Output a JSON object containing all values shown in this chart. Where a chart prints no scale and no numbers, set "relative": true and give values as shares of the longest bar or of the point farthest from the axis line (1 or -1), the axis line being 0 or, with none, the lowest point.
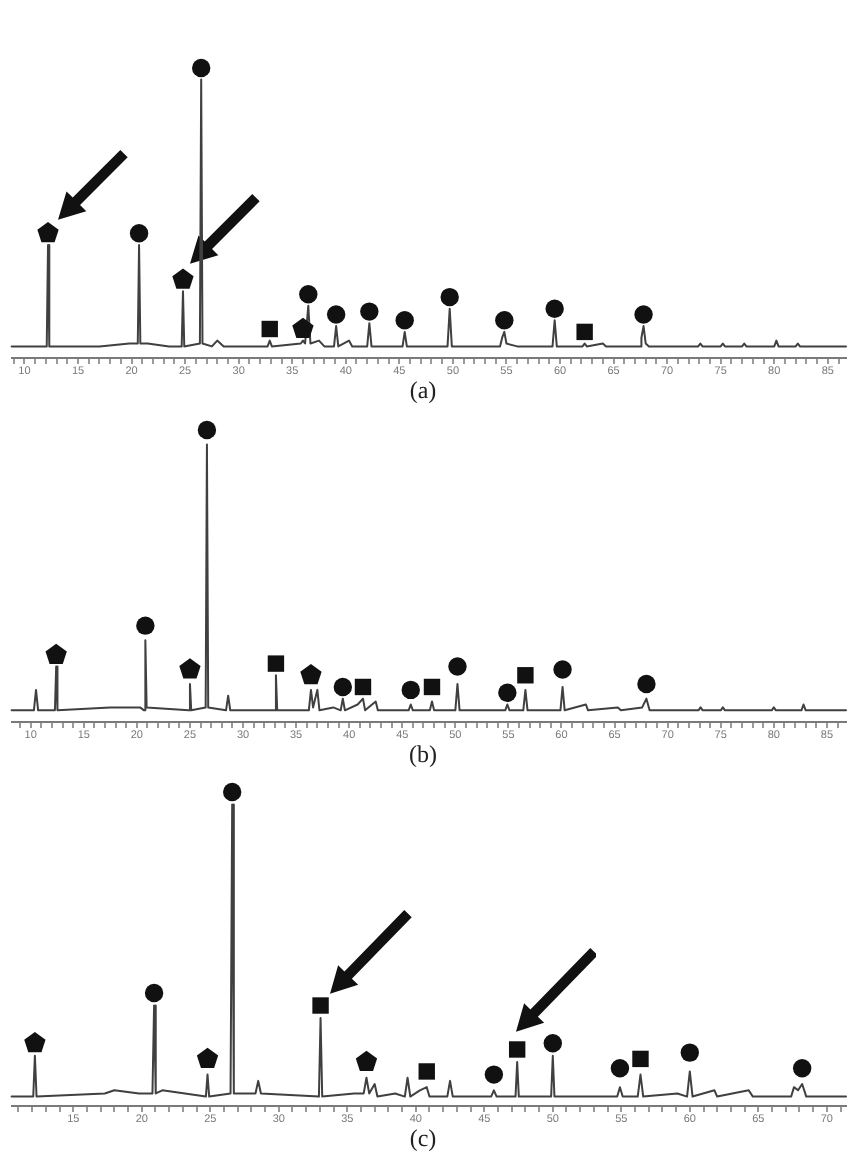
{
  "chart_data": [
    {
      "type": "line",
      "title": "(a)",
      "relative": true,
      "xlim": [
        8.8,
        86.7
      ],
      "xticks": [
        {
          "value": 9,
          "label": null
        },
        10,
        {
          "value": 11,
          "label": null
        },
        {
          "value": 12,
          "label": null
        },
        {
          "value": 13,
          "label": null
        },
        {
          "value": 14,
          "label": null
        },
        15,
        {
          "value": 16,
          "label": null
        },
        {
          "value": 17,
          "label": null
        },
        {
          "value": 18,
          "label": null
        },
        {
          "value": 19,
          "label": null
        },
        20,
        {
          "value": 21,
          "label": null
        },
        {
          "value": 22,
          "label": null
        },
        {
          "value": 23,
          "label": null
        },
        {
          "value": 24,
          "label": null
        },
        25,
        {
          "value": 26,
          "label": null
        },
        {
          "value": 27,
          "label": null
        },
        {
          "value": 28,
          "label": null
        },
        {
          "value": 29,
          "label": null
        },
        30,
        {
          "value": 31,
          "label": null
        },
        {
          "value": 32,
          "label": null
        },
        {
          "value": 33,
          "label": null
        },
        {
          "value": 34,
          "label": null
        },
        35,
        {
          "value": 36,
          "label": null
        },
        {
          "value": 37,
          "label": null
        },
        {
          "value": 38,
          "label": null
        },
        {
          "value": 39,
          "label": null
        },
        40,
        {
          "value": 41,
          "label": null
        },
        {
          "value": 42,
          "label": null
        },
        {
          "value": 43,
          "label": null
        },
        {
          "value": 44,
          "label": null
        },
        45,
        {
          "value": 46,
          "label": null
        },
        {
          "value": 47,
          "label": null
        },
        {
          "value": 48,
          "label": null
        },
        {
          "value": 49,
          "label": null
        },
        50,
        {
          "value": 51,
          "label": null
        },
        {
          "value": 52,
          "label": null
        },
        {
          "value": 53,
          "label": null
        },
        {
          "value": 54,
          "label": null
        },
        55,
        {
          "value": 56,
          "label": null
        },
        {
          "value": 57,
          "label": null
        },
        {
          "value": 58,
          "label": null
        },
        {
          "value": 59,
          "label": null
        },
        60,
        {
          "value": 61,
          "label": null
        },
        {
          "value": 62,
          "label": null
        },
        {
          "value": 63,
          "label": null
        },
        {
          "value": 64,
          "label": null
        },
        65,
        {
          "value": 66,
          "label": null
        },
        {
          "value": 67,
          "label": null
        },
        {
          "value": 68,
          "label": null
        },
        {
          "value": 69,
          "label": null
        },
        70,
        {
          "value": 71,
          "label": null
        },
        {
          "value": 72,
          "label": null
        },
        {
          "value": 73,
          "label": null
        },
        {
          "value": 74,
          "label": null
        },
        75,
        {
          "value": 76,
          "label": null
        },
        {
          "value": 77,
          "label": null
        },
        {
          "value": 78,
          "label": null
        },
        {
          "value": 79,
          "label": null
        },
        80,
        {
          "value": 81,
          "label": null
        },
        {
          "value": 82,
          "label": null
        },
        {
          "value": 83,
          "label": null
        },
        {
          "value": 84,
          "label": null
        },
        85,
        {
          "value": 86,
          "label": null
        }
      ],
      "series": [
        {
          "type": "line",
          "color": "#404040",
          "marker": "none",
          "x": [
            8.8,
            12.08,
            12.2,
            12.32,
            17,
            19.8,
            20.58,
            20.7,
            20.82,
            21.5,
            23.5,
            24.68,
            24.8,
            24.92,
            26.38,
            26.5,
            26.62,
            27.5,
            28,
            28.6,
            32.7,
            32.9,
            33.1,
            35.8,
            36,
            36.2,
            36.5,
            36.7,
            37.5,
            38,
            38.9,
            39.1,
            39.3,
            40.3,
            40.6,
            42,
            42.2,
            42.4,
            45.3,
            45.5,
            45.7,
            49.5,
            49.7,
            49.9,
            54.4,
            54.6,
            54.8,
            55,
            56,
            59.3,
            59.5,
            59.7,
            62.1,
            62.3,
            62.5,
            64,
            64.3,
            67.5,
            67.6,
            67.8,
            68,
            68.3,
            72.9,
            73.1,
            73.3,
            75,
            75.2,
            75.4,
            77,
            77.2,
            77.4,
            80,
            80.2,
            80.4,
            82,
            82.2,
            82.4,
            86.7
          ],
          "values": [
            0.04,
            0.04,
            0.39,
            0.04,
            0.04,
            0.05,
            0.05,
            0.39,
            0.05,
            0.05,
            0.04,
            0.04,
            0.23,
            0.04,
            0.05,
            0.96,
            0.05,
            0.04,
            0.06,
            0.04,
            0.04,
            0.06,
            0.04,
            0.05,
            0.06,
            0.05,
            0.18,
            0.05,
            0.06,
            0.04,
            0.04,
            0.11,
            0.04,
            0.06,
            0.04,
            0.04,
            0.12,
            0.04,
            0.04,
            0.09,
            0.04,
            0.04,
            0.17,
            0.04,
            0.04,
            0.07,
            0.09,
            0.05,
            0.04,
            0.04,
            0.13,
            0.04,
            0.04,
            0.05,
            0.04,
            0.05,
            0.04,
            0.04,
            0.07,
            0.11,
            0.05,
            0.04,
            0.04,
            0.05,
            0.04,
            0.04,
            0.05,
            0.04,
            0.04,
            0.05,
            0.04,
            0.04,
            0.06,
            0.04,
            0.04,
            0.05,
            0.04,
            0.04
          ]
        },
        {
          "type": "scatter",
          "color": "#111111",
          "x": [
            12.2,
            24.8,
            36
          ],
          "values": [
            0.43,
            0.27,
            0.1
          ]
        },
        {
          "type": "scatter",
          "color": "#111111",
          "marker": "circle",
          "x": [
            20.7,
            26.5,
            36.5,
            39.1,
            42.2,
            45.5,
            49.7,
            54.8,
            59.5,
            67.8
          ],
          "values": [
            0.43,
            1,
            0.22,
            0.15,
            0.16,
            0.13,
            0.21,
            0.13,
            0.17,
            0.15
          ]
        },
        {
          "type": "scatter",
          "color": "#111111",
          "marker": "square",
          "x": [
            32.9,
            62.3
          ],
          "values": [
            0.1,
            0.09
          ]
        }
      ]
    },
    {
      "type": "line",
      "title": "(b)",
      "relative": true,
      "xlim": [
        8.2,
        86.8
      ],
      "xticks": [
        {
          "value": 9,
          "label": null
        },
        10,
        {
          "value": 11,
          "label": null
        },
        {
          "value": 12,
          "label": null
        },
        {
          "value": 13,
          "label": null
        },
        {
          "value": 14,
          "label": null
        },
        15,
        {
          "value": 16,
          "label": null
        },
        {
          "value": 17,
          "label": null
        },
        {
          "value": 18,
          "label": null
        },
        {
          "value": 19,
          "label": null
        },
        20,
        {
          "value": 21,
          "label": null
        },
        {
          "value": 22,
          "label": null
        },
        {
          "value": 23,
          "label": null
        },
        {
          "value": 24,
          "label": null
        },
        25,
        {
          "value": 26,
          "label": null
        },
        {
          "value": 27,
          "label": null
        },
        {
          "value": 28,
          "label": null
        },
        {
          "value": 29,
          "label": null
        },
        30,
        {
          "value": 31,
          "label": null
        },
        {
          "value": 32,
          "label": null
        },
        {
          "value": 33,
          "label": null
        },
        {
          "value": 34,
          "label": null
        },
        35,
        {
          "value": 36,
          "label": null
        },
        {
          "value": 37,
          "label": null
        },
        {
          "value": 38,
          "label": null
        },
        {
          "value": 39,
          "label": null
        },
        40,
        {
          "value": 41,
          "label": null
        },
        {
          "value": 42,
          "label": null
        },
        {
          "value": 43,
          "label": null
        },
        {
          "value": 44,
          "label": null
        },
        45,
        {
          "value": 46,
          "label": null
        },
        {
          "value": 47,
          "label": null
        },
        {
          "value": 48,
          "label": null
        },
        {
          "value": 49,
          "label": null
        },
        50,
        {
          "value": 51,
          "label": null
        },
        {
          "value": 52,
          "label": null
        },
        {
          "value": 53,
          "label": null
        },
        {
          "value": 54,
          "label": null
        },
        55,
        {
          "value": 56,
          "label": null
        },
        {
          "value": 57,
          "label": null
        },
        {
          "value": 58,
          "label": null
        },
        {
          "value": 59,
          "label": null
        },
        60,
        {
          "value": 61,
          "label": null
        },
        {
          "value": 62,
          "label": null
        },
        {
          "value": 63,
          "label": null
        },
        {
          "value": 64,
          "label": null
        },
        65,
        {
          "value": 66,
          "label": null
        },
        {
          "value": 67,
          "label": null
        },
        {
          "value": 68,
          "label": null
        },
        {
          "value": 69,
          "label": null
        },
        70,
        {
          "value": 71,
          "label": null
        },
        {
          "value": 72,
          "label": null
        },
        {
          "value": 73,
          "label": null
        },
        {
          "value": 74,
          "label": null
        },
        75,
        {
          "value": 76,
          "label": null
        },
        {
          "value": 77,
          "label": null
        },
        {
          "value": 78,
          "label": null
        },
        {
          "value": 79,
          "label": null
        },
        80,
        {
          "value": 81,
          "label": null
        },
        {
          "value": 82,
          "label": null
        },
        {
          "value": 83,
          "label": null
        },
        {
          "value": 84,
          "label": null
        },
        85,
        {
          "value": 86,
          "label": null
        }
      ],
      "series": [
        {
          "type": "line",
          "color": "#404040",
          "marker": "none",
          "x": [
            8.2,
            10.3,
            10.5,
            10.7,
            12.28,
            12.4,
            12.52,
            17.5,
            18.2,
            20.3,
            20.68,
            20.8,
            20.92,
            24.88,
            25,
            25.12,
            26.48,
            26.6,
            26.72,
            28.4,
            28.6,
            28.8,
            32.98,
            33.1,
            33.22,
            36.2,
            36.4,
            36.6,
            37,
            37.2,
            38.5,
            39.2,
            39.4,
            39.6,
            40.8,
            41.3,
            41.5,
            42.5,
            42.7,
            45.6,
            45.8,
            46,
            47.6,
            47.8,
            48,
            50,
            50.2,
            50.4,
            54.7,
            54.9,
            55.1,
            56.4,
            56.6,
            56.8,
            59.9,
            60.1,
            60.3,
            62.3,
            62.5,
            65.3,
            65.6,
            67.6,
            68,
            68.3,
            72.9,
            73.1,
            73.3,
            75,
            75.2,
            75.4,
            79.8,
            80,
            80.2,
            82.6,
            82.8,
            83,
            86.8
          ],
          "values": [
            0.04,
            0.04,
            0.11,
            0.04,
            0.04,
            0.19,
            0.04,
            0.05,
            0.05,
            0.05,
            0.04,
            0.28,
            0.05,
            0.04,
            0.13,
            0.04,
            0.05,
            0.95,
            0.05,
            0.04,
            0.09,
            0.04,
            0.04,
            0.16,
            0.04,
            0.04,
            0.11,
            0.05,
            0.11,
            0.04,
            0.05,
            0.04,
            0.08,
            0.04,
            0.06,
            0.08,
            0.04,
            0.07,
            0.04,
            0.04,
            0.06,
            0.04,
            0.04,
            0.07,
            0.04,
            0.04,
            0.13,
            0.04,
            0.04,
            0.06,
            0.04,
            0.04,
            0.11,
            0.04,
            0.04,
            0.12,
            0.04,
            0.06,
            0.04,
            0.05,
            0.04,
            0.05,
            0.08,
            0.04,
            0.04,
            0.05,
            0.04,
            0.04,
            0.05,
            0.04,
            0.04,
            0.05,
            0.04,
            0.04,
            0.06,
            0.04,
            0.04
          ]
        },
        {
          "type": "scatter",
          "color": "#111111",
          "x": [
            12.4,
            25,
            36.4
          ],
          "values": [
            0.23,
            0.18,
            0.16
          ]
        },
        {
          "type": "scatter",
          "color": "#111111",
          "marker": "circle",
          "x": [
            20.8,
            26.6,
            39.4,
            45.8,
            50.2,
            54.9,
            60.1,
            68
          ],
          "values": [
            0.33,
            1,
            0.12,
            0.11,
            0.19,
            0.1,
            0.18,
            0.13
          ]
        },
        {
          "type": "scatter",
          "color": "#111111",
          "marker": "square",
          "x": [
            33.1,
            41.3,
            47.8,
            56.6
          ],
          "values": [
            0.2,
            0.12,
            0.12,
            0.16
          ]
        }
      ]
    },
    {
      "type": "line",
      "title": "(c)",
      "relative": true,
      "xlim": [
        10.5,
        71.4
      ],
      "xticks": [
        {
          "value": 11,
          "label": null
        },
        {
          "value": 12,
          "label": null
        },
        {
          "value": 13,
          "label": null
        },
        {
          "value": 14,
          "label": null
        },
        15,
        {
          "value": 16,
          "label": null
        },
        {
          "value": 17,
          "label": null
        },
        {
          "value": 18,
          "label": null
        },
        {
          "value": 19,
          "label": null
        },
        20,
        {
          "value": 21,
          "label": null
        },
        {
          "value": 22,
          "label": null
        },
        {
          "value": 23,
          "label": null
        },
        {
          "value": 24,
          "label": null
        },
        25,
        {
          "value": 26,
          "label": null
        },
        {
          "value": 27,
          "label": null
        },
        {
          "value": 28,
          "label": null
        },
        {
          "value": 29,
          "label": null
        },
        30,
        {
          "value": 31,
          "label": null
        },
        {
          "value": 32,
          "label": null
        },
        {
          "value": 33,
          "label": null
        },
        {
          "value": 34,
          "label": null
        },
        35,
        {
          "value": 36,
          "label": null
        },
        {
          "value": 37,
          "label": null
        },
        {
          "value": 38,
          "label": null
        },
        {
          "value": 39,
          "label": null
        },
        40,
        {
          "value": 41,
          "label": null
        },
        {
          "value": 42,
          "label": null
        },
        {
          "value": 43,
          "label": null
        },
        {
          "value": 44,
          "label": null
        },
        45,
        {
          "value": 46,
          "label": null
        },
        {
          "value": 47,
          "label": null
        },
        {
          "value": 48,
          "label": null
        },
        {
          "value": 49,
          "label": null
        },
        50,
        {
          "value": 51,
          "label": null
        },
        {
          "value": 52,
          "label": null
        },
        {
          "value": 53,
          "label": null
        },
        {
          "value": 54,
          "label": null
        },
        55,
        {
          "value": 56,
          "label": null
        },
        {
          "value": 57,
          "label": null
        },
        {
          "value": 58,
          "label": null
        },
        {
          "value": 59,
          "label": null
        },
        60,
        {
          "value": 61,
          "label": null
        },
        {
          "value": 62,
          "label": null
        },
        {
          "value": 63,
          "label": null
        },
        {
          "value": 64,
          "label": null
        },
        65,
        {
          "value": 66,
          "label": null
        },
        {
          "value": 67,
          "label": null
        },
        {
          "value": 68,
          "label": null
        },
        {
          "value": 69,
          "label": null
        },
        70,
        {
          "value": 71,
          "label": null
        }
      ],
      "series": [
        {
          "type": "line",
          "color": "#404040",
          "marker": "none",
          "x": [
            10.5,
            12.08,
            12.2,
            12.32,
            17.3,
            18,
            19.8,
            20.78,
            20.9,
            21.02,
            21.5,
            24.68,
            24.8,
            24.92,
            26.48,
            26.6,
            26.72,
            28.3,
            28.5,
            28.7,
            32.93,
            33.05,
            33.17,
            35.5,
            36.2,
            36.4,
            36.6,
            37,
            37.2,
            38.5,
            39.2,
            39.4,
            39.6,
            40.3,
            40.8,
            41,
            42.3,
            42.5,
            42.7,
            45.5,
            45.7,
            45.9,
            47.28,
            47.4,
            47.52,
            49.88,
            50,
            50.12,
            54.7,
            54.9,
            55.1,
            56.2,
            56.4,
            56.6,
            59.1,
            59.8,
            60,
            60.2,
            61.8,
            62,
            64.3,
            64.6,
            67.4,
            67.6,
            67.9,
            68.2,
            68.5,
            71.4
          ],
          "values": [
            0.03,
            0.03,
            0.16,
            0.03,
            0.04,
            0.05,
            0.04,
            0.04,
            0.32,
            0.04,
            0.05,
            0.03,
            0.1,
            0.03,
            0.04,
            0.96,
            0.04,
            0.04,
            0.08,
            0.04,
            0.03,
            0.28,
            0.03,
            0.04,
            0.04,
            0.09,
            0.04,
            0.07,
            0.03,
            0.04,
            0.03,
            0.09,
            0.03,
            0.05,
            0.06,
            0.03,
            0.03,
            0.08,
            0.03,
            0.03,
            0.05,
            0.03,
            0.03,
            0.14,
            0.03,
            0.03,
            0.16,
            0.03,
            0.03,
            0.06,
            0.03,
            0.03,
            0.1,
            0.03,
            0.04,
            0.03,
            0.11,
            0.03,
            0.05,
            0.03,
            0.05,
            0.03,
            0.03,
            0.06,
            0.05,
            0.07,
            0.03,
            0.03
          ]
        },
        {
          "type": "scatter",
          "color": "#111111",
          "x": [
            12.2,
            24.8,
            36.4
          ],
          "values": [
            0.2,
            0.15,
            0.14
          ]
        },
        {
          "type": "scatter",
          "color": "#111111",
          "marker": "circle",
          "x": [
            20.9,
            26.6,
            45.7,
            50,
            54.9,
            60,
            68.2
          ],
          "values": [
            0.36,
            1,
            0.1,
            0.2,
            0.12,
            0.17,
            0.12
          ]
        },
        {
          "type": "scatter",
          "color": "#111111",
          "marker": "square",
          "x": [
            33.05,
            40.8,
            47.4,
            56.4
          ],
          "values": [
            0.32,
            0.11,
            0.18,
            0.15
          ]
        }
      ]
    }
  ]
}
